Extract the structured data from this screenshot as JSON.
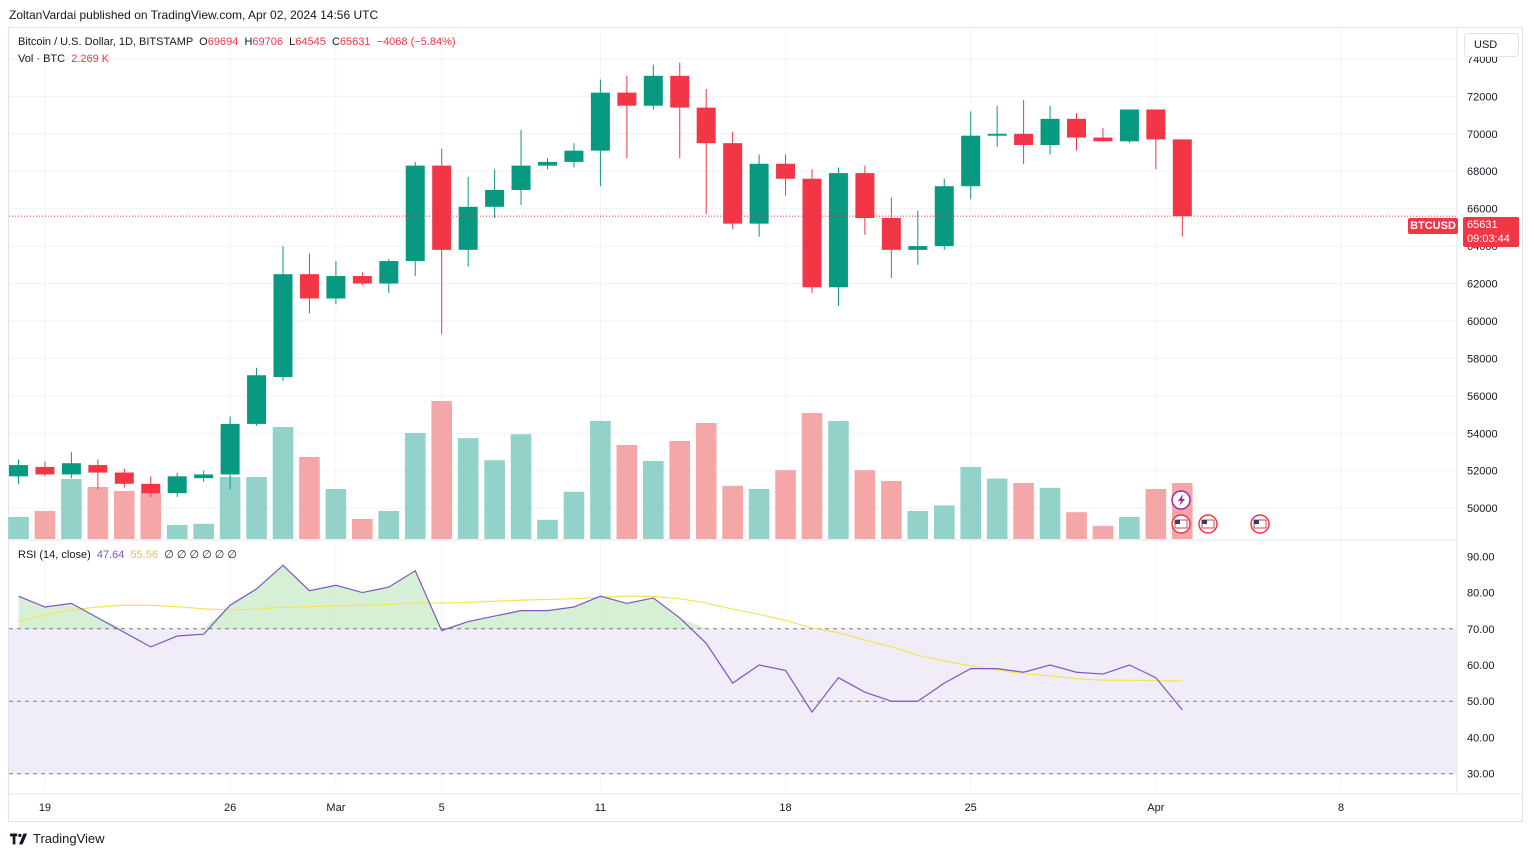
{
  "header": {
    "published": "ZoltanVardai published on TradingView.com, Apr 02, 2024 14:56 UTC"
  },
  "legend": {
    "symbol": "Bitcoin / U.S. Dollar, 1D, BITSTAMP",
    "o_label": "O",
    "o_value": "69694",
    "h_label": "H",
    "h_value": "69706",
    "l_label": "L",
    "l_value": "64545",
    "c_label": "C",
    "c_value": "65631",
    "change": "−4068 (−5.84%)",
    "vol_label": "Vol · BTC",
    "vol_value": "2.269 K"
  },
  "rsi_legend": {
    "label": "RSI (14, close)",
    "rsi": "47.64",
    "ma": "55.56",
    "extras": "∅ ∅ ∅ ∅ ∅ ∅"
  },
  "currency": "USD",
  "price_tag": {
    "symbol": "BTCUSD",
    "price": "65631",
    "countdown": "09:03:44"
  },
  "footer": {
    "brand": "TradingView"
  },
  "colors": {
    "up": "#089981",
    "down": "#f23645",
    "up_vol": "#92d2c9",
    "down_vol": "#f5a6a6",
    "rsi": "#7e57c2",
    "rsi_ma": "#f5e357",
    "rsi_band": "#f0ecf8"
  },
  "chart_data": {
    "type": "candlestick",
    "price_axis": {
      "ticks": [
        74000,
        72000,
        70000,
        68000,
        66000,
        64000,
        62000,
        60000,
        58000,
        56000,
        54000,
        52000,
        50000
      ],
      "range": [
        48350,
        75600
      ]
    },
    "x_ticks": [
      {
        "label": "19",
        "index": 1
      },
      {
        "label": "26",
        "index": 8
      },
      {
        "label": "Mar",
        "index": 12
      },
      {
        "label": "5",
        "index": 16
      },
      {
        "label": "11",
        "index": 22
      },
      {
        "label": "18",
        "index": 29
      },
      {
        "label": "25",
        "index": 36
      },
      {
        "label": "Apr",
        "index": 43
      },
      {
        "label": "8",
        "index": 50
      }
    ],
    "candles": [
      {
        "o": 51700,
        "h": 52600,
        "l": 51300,
        "c": 52300
      },
      {
        "o": 52200,
        "h": 52500,
        "l": 51700,
        "c": 51800
      },
      {
        "o": 51800,
        "h": 53000,
        "l": 51600,
        "c": 52400
      },
      {
        "o": 52300,
        "h": 52600,
        "l": 51000,
        "c": 51900
      },
      {
        "o": 51900,
        "h": 52100,
        "l": 51100,
        "c": 51300
      },
      {
        "o": 51300,
        "h": 51700,
        "l": 50600,
        "c": 50800
      },
      {
        "o": 50800,
        "h": 51900,
        "l": 50600,
        "c": 51700
      },
      {
        "o": 51600,
        "h": 52000,
        "l": 51400,
        "c": 51800
      },
      {
        "o": 51800,
        "h": 54900,
        "l": 51000,
        "c": 54500
      },
      {
        "o": 54500,
        "h": 57500,
        "l": 54400,
        "c": 57100
      },
      {
        "o": 57000,
        "h": 64000,
        "l": 56800,
        "c": 62500
      },
      {
        "o": 62500,
        "h": 63600,
        "l": 60400,
        "c": 61200
      },
      {
        "o": 61200,
        "h": 63200,
        "l": 60900,
        "c": 62400
      },
      {
        "o": 62400,
        "h": 62600,
        "l": 61900,
        "c": 62000
      },
      {
        "o": 62000,
        "h": 63300,
        "l": 61500,
        "c": 63200
      },
      {
        "o": 63200,
        "h": 68500,
        "l": 62400,
        "c": 68300
      },
      {
        "o": 68300,
        "h": 69200,
        "l": 59300,
        "c": 63800
      },
      {
        "o": 63800,
        "h": 67700,
        "l": 62900,
        "c": 66100
      },
      {
        "o": 66100,
        "h": 68100,
        "l": 65500,
        "c": 67000
      },
      {
        "o": 67000,
        "h": 70200,
        "l": 66200,
        "c": 68300
      },
      {
        "o": 68300,
        "h": 68700,
        "l": 68100,
        "c": 68500
      },
      {
        "o": 68500,
        "h": 69500,
        "l": 68200,
        "c": 69100
      },
      {
        "o": 69100,
        "h": 72900,
        "l": 67200,
        "c": 72200
      },
      {
        "o": 72200,
        "h": 73100,
        "l": 68700,
        "c": 71500
      },
      {
        "o": 71500,
        "h": 73700,
        "l": 71300,
        "c": 73100
      },
      {
        "o": 73100,
        "h": 73800,
        "l": 68700,
        "c": 71400
      },
      {
        "o": 71400,
        "h": 72400,
        "l": 65700,
        "c": 69500
      },
      {
        "o": 69500,
        "h": 70100,
        "l": 64900,
        "c": 65200
      },
      {
        "o": 65200,
        "h": 68900,
        "l": 64500,
        "c": 68400
      },
      {
        "o": 68400,
        "h": 68900,
        "l": 66700,
        "c": 67600
      },
      {
        "o": 67600,
        "h": 68100,
        "l": 61500,
        "c": 61800
      },
      {
        "o": 61800,
        "h": 68200,
        "l": 60800,
        "c": 67900
      },
      {
        "o": 67900,
        "h": 68300,
        "l": 64600,
        "c": 65500
      },
      {
        "o": 65500,
        "h": 66600,
        "l": 62300,
        "c": 63800
      },
      {
        "o": 63800,
        "h": 65900,
        "l": 63000,
        "c": 64000
      },
      {
        "o": 64000,
        "h": 67600,
        "l": 63800,
        "c": 67200
      },
      {
        "o": 67200,
        "h": 71200,
        "l": 66500,
        "c": 69900
      },
      {
        "o": 69900,
        "h": 71500,
        "l": 69300,
        "c": 70000
      },
      {
        "o": 70000,
        "h": 71800,
        "l": 68400,
        "c": 69400
      },
      {
        "o": 69400,
        "h": 71500,
        "l": 68900,
        "c": 70800
      },
      {
        "o": 70800,
        "h": 71100,
        "l": 69100,
        "c": 69800
      },
      {
        "o": 69800,
        "h": 70300,
        "l": 69600,
        "c": 69600
      },
      {
        "o": 69600,
        "h": 71300,
        "l": 69500,
        "c": 71300
      },
      {
        "o": 71300,
        "h": 71300,
        "l": 68100,
        "c": 69700
      },
      {
        "o": 69700,
        "h": 69700,
        "l": 64500,
        "c": 65600
      }
    ],
    "volume": [
      0.55,
      0.7,
      1.5,
      1.3,
      1.2,
      1.15,
      0.35,
      0.38,
      1.55,
      1.55,
      2.8,
      2.05,
      1.25,
      0.5,
      0.7,
      2.65,
      3.45,
      2.52,
      1.97,
      2.62,
      0.48,
      1.18,
      2.95,
      2.35,
      1.95,
      2.45,
      2.9,
      1.33,
      1.25,
      1.72,
      3.15,
      2.95,
      1.72,
      1.45,
      0.7,
      0.84,
      1.8,
      1.51,
      1.4,
      1.28,
      0.67,
      0.33,
      0.55,
      1.25,
      1.4
    ],
    "rsi_axis": {
      "ticks": [
        90,
        80,
        70,
        60,
        50,
        40,
        30
      ],
      "band": [
        30,
        70
      ],
      "mid": 50,
      "range": [
        25.5,
        94.5
      ]
    },
    "rsi": [
      79,
      76,
      77,
      73,
      69,
      65,
      68,
      68.5,
      76.5,
      81,
      87.5,
      80.5,
      82,
      80,
      81.5,
      86,
      69.5,
      72,
      73.5,
      75,
      75,
      76,
      79,
      77,
      78.5,
      73,
      66,
      55,
      60,
      58.5,
      47,
      56.5,
      52.5,
      50,
      50,
      55,
      59,
      59,
      58,
      60,
      58,
      57.5,
      60,
      56.5,
      47.6
    ],
    "rsi_ma": [
      72,
      73.8,
      75.2,
      76,
      76.5,
      76.5,
      76.1,
      75.5,
      75.2,
      75.4,
      75.9,
      76.1,
      76.3,
      76.5,
      76.7,
      77.2,
      77.1,
      77.3,
      77.6,
      77.9,
      78.1,
      78.3,
      78.7,
      79,
      78.9,
      78.3,
      77.1,
      75.4,
      74,
      72.3,
      70.2,
      68.9,
      66.9,
      65,
      62.7,
      61.1,
      59.8,
      58.6,
      57.6,
      57,
      56.2,
      55.8,
      55.8,
      55.7,
      55.6
    ]
  }
}
